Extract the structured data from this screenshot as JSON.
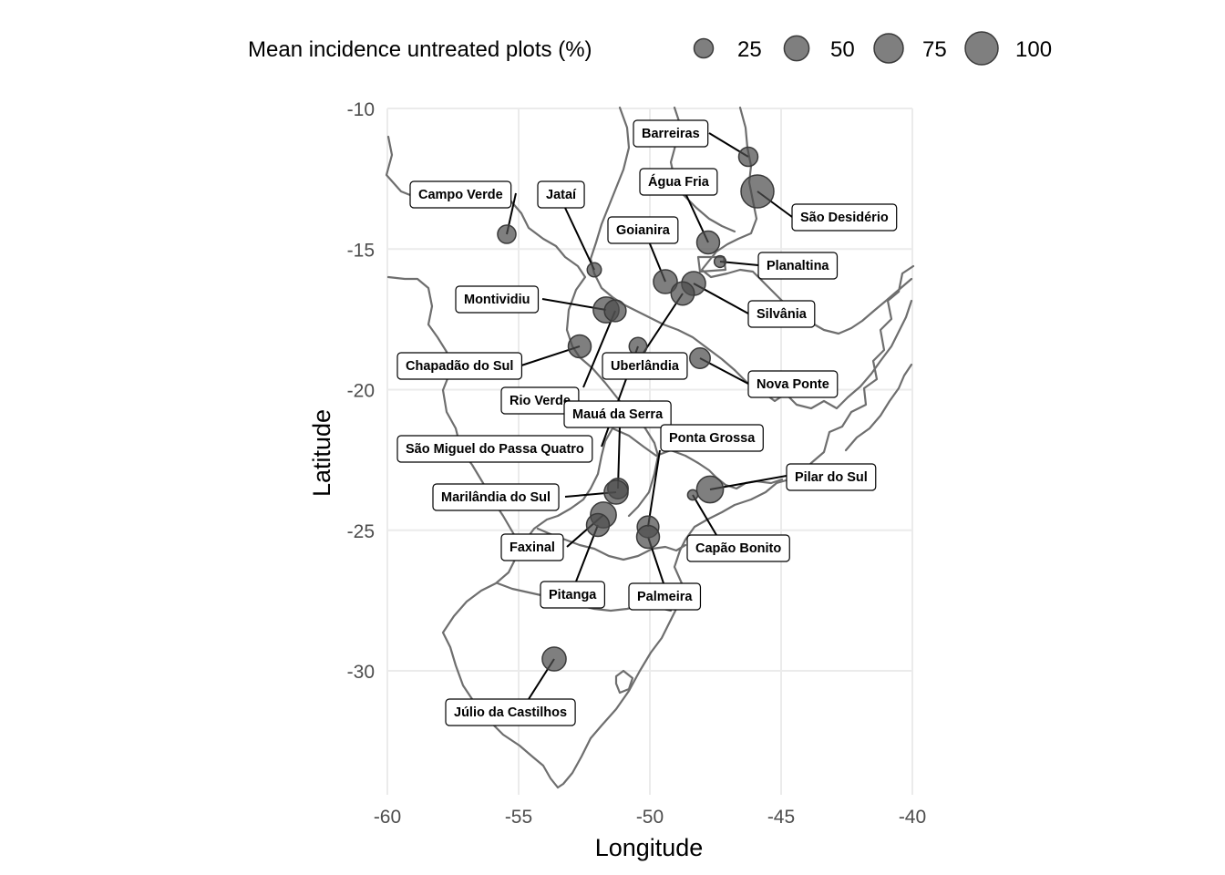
{
  "chart_data": {
    "type": "map",
    "xlabel": "Longitude",
    "ylabel": "Latitude",
    "xlim": [
      -60,
      -40
    ],
    "ylim": [
      -34.3,
      -10
    ],
    "xticks": [
      -60,
      -55,
      -50,
      -45,
      -40
    ],
    "yticks": [
      -10,
      -15,
      -20,
      -25,
      -30
    ],
    "xtick_labels": [
      "-60",
      "-55",
      "-50",
      "-45",
      "-40"
    ],
    "ytick_labels": [
      "-10",
      "-15",
      "-20",
      "-25",
      "-30"
    ],
    "grid": true,
    "legend_position": "top",
    "legend": {
      "title": "Mean incidence untreated plots (%)",
      "breaks": [
        25,
        50,
        75,
        100
      ],
      "break_labels": [
        "25",
        "50",
        "75",
        "100"
      ]
    },
    "point_color": "#4d4d4d",
    "sites": [
      {
        "name": "Barreiras",
        "lon": -46.3,
        "lat": -11.8,
        "incidence": 25
      },
      {
        "name": "São Desidério",
        "lon": -46.0,
        "lat": -13.0,
        "incidence": 100
      },
      {
        "name": "Campo Verde",
        "lon": -55.0,
        "lat": -15.1,
        "incidence": 22
      },
      {
        "name": "Jataí",
        "lon": -52.0,
        "lat": -15.9,
        "incidence": 10
      },
      {
        "name": "Água Fria",
        "lon": -47.7,
        "lat": -14.9,
        "incidence": 40
      },
      {
        "name": "Planaltina",
        "lon": -47.3,
        "lat": -15.6,
        "incidence": 5
      },
      {
        "name": "Goianira",
        "lon": -49.4,
        "lat": -16.3,
        "incidence": 45
      },
      {
        "name": "Silvânia",
        "lon": -48.3,
        "lat": -16.3,
        "incidence": 45
      },
      {
        "name": "Uberlândia",
        "lon": -48.7,
        "lat": -16.8,
        "incidence": 42
      },
      {
        "name": "Montividiu",
        "lon": -51.6,
        "lat": -17.4,
        "incidence": 55
      },
      {
        "name": "Rio Verde",
        "lon": -51.2,
        "lat": -17.4,
        "incidence": 35
      },
      {
        "name": "Chapadão do Sul",
        "lon": -52.6,
        "lat": -18.7,
        "incidence": 40
      },
      {
        "name": "Nova Ponte",
        "lon": -48.1,
        "lat": -19.1,
        "incidence": 30
      },
      {
        "name": "São Miguel do Passa Quatro",
        "lon": -47.7,
        "lat": -19.4,
        "incidence": 20
      },
      {
        "name": "Mauá da Serra",
        "lon": -51.2,
        "lat": -23.8,
        "incidence": 30
      },
      {
        "name": "Marilândia do Sul",
        "lon": -51.2,
        "lat": -23.9,
        "incidence": 45
      },
      {
        "name": "Ponta Grossa",
        "lon": -50.0,
        "lat": -25.1,
        "incidence": 35
      },
      {
        "name": "Pilar do Sul",
        "lon": -47.6,
        "lat": -23.8,
        "incidence": 60
      },
      {
        "name": "Capão Bonito",
        "lon": -48.3,
        "lat": -24.0,
        "incidence": 3
      },
      {
        "name": "Faxinal",
        "lon": -51.7,
        "lat": -24.7,
        "incidence": 55
      },
      {
        "name": "Pitanga",
        "lon": -51.7,
        "lat": -24.7,
        "incidence": 40
      },
      {
        "name": "Palmeira",
        "lon": -50.0,
        "lat": -25.4,
        "incidence": 40
      },
      {
        "name": "Júlio da  Castilhos",
        "lon": -53.6,
        "lat": -29.5,
        "incidence": 45
      }
    ]
  }
}
